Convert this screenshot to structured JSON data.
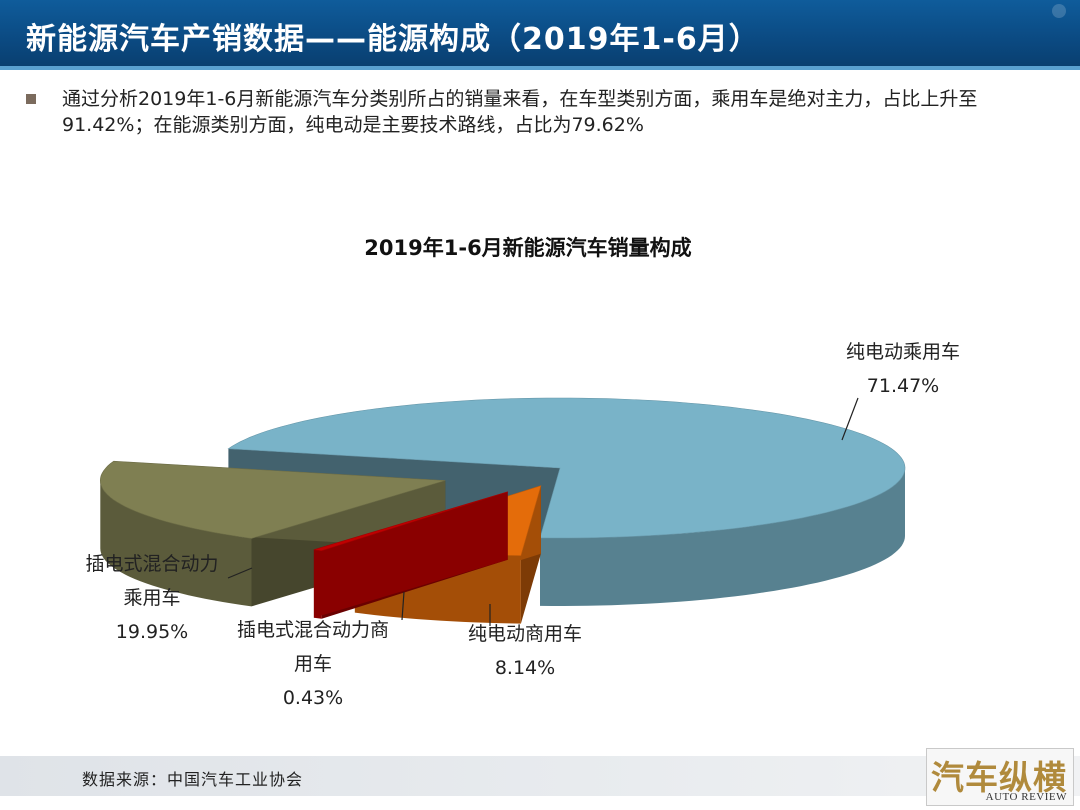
{
  "header": {
    "title": "新能源汽车产销数据——能源构成（2019年1-6月）"
  },
  "summary": {
    "text": "通过分析2019年1-6月新能源汽车分类别所占的销量来看，在车型类别方面，乘用车是绝对主力，占比上升至91.42%；在能源类别方面，纯电动是主要技术路线，占比为79.62%"
  },
  "footer": {
    "source": "数据来源：中国汽车工业协会",
    "logo_cn": "汽车纵横",
    "logo_en": "AUTO REVIEW"
  },
  "chart_data": {
    "type": "pie",
    "style": "3d-exploded",
    "title": "2019年1-6月新能源汽车销量构成",
    "unit": "%",
    "slices": [
      {
        "name": "纯电动乘用车",
        "label_lines": [
          "纯电动乘用车",
          "71.47%"
        ],
        "value": 71.47,
        "color": "#79b3c8"
      },
      {
        "name": "纯电动商用车",
        "label_lines": [
          "纯电动商用车",
          "8.14%"
        ],
        "value": 8.14,
        "color": "#e46c0a"
      },
      {
        "name": "插电式混合动力商用车",
        "label_lines": [
          "插电式混合动力商",
          "用车",
          "0.43%"
        ],
        "value": 0.43,
        "color": "#c00000"
      },
      {
        "name": "插电式混合动力乘用车",
        "label_lines": [
          "插电式混合动力",
          "乘用车",
          "19.95%"
        ],
        "value": 19.95,
        "color": "#7f7f52"
      }
    ]
  }
}
